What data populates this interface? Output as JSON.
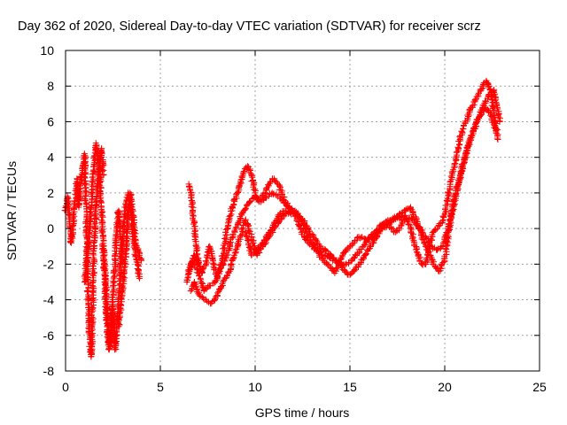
{
  "chart_data": {
    "type": "scatter",
    "title": "Day 362 of 2020, Sidereal Day-to-day VTEC variation (SDTVAR) for receiver scrz",
    "xlabel": "GPS time / hours",
    "ylabel": "SDTVAR / TECUs",
    "xlim": [
      0,
      25
    ],
    "ylim": [
      -8,
      10
    ],
    "x_ticks": [
      0,
      5,
      10,
      15,
      20,
      25
    ],
    "y_ticks": [
      -8,
      -6,
      -4,
      -2,
      0,
      2,
      4,
      6,
      8,
      10
    ],
    "grid": true,
    "marker": "+",
    "colors": {
      "series": "#ff0000",
      "grid": "#a0a0a0",
      "axis": "#000000"
    },
    "series": [
      {
        "name": "SDTVAR",
        "tracks": [
          {
            "x": [
              0.0,
              0.1,
              0.2,
              0.3,
              0.4,
              0.5,
              0.6,
              0.7,
              0.8,
              0.9,
              1.0,
              1.05,
              1.1,
              1.15,
              1.2,
              1.25,
              1.3,
              1.35,
              1.4,
              1.45,
              1.5,
              1.6,
              1.7,
              1.8,
              1.9,
              2.0
            ],
            "y": [
              1.0,
              1.8,
              0.5,
              -0.8,
              0.2,
              1.5,
              2.8,
              1.2,
              2.5,
              3.5,
              4.2,
              2.0,
              0.5,
              -2.5,
              -4.0,
              -5.5,
              -6.8,
              -7.2,
              -6.0,
              -3.0,
              -1.0,
              1.0,
              2.5,
              3.8,
              4.5,
              3.0
            ]
          },
          {
            "x": [
              1.0,
              1.1,
              1.2,
              1.3,
              1.4,
              1.5,
              1.6,
              1.7,
              1.8,
              1.9,
              2.0,
              2.1,
              2.2,
              2.3,
              2.4,
              2.5,
              2.6,
              2.7,
              2.8,
              2.9,
              3.0
            ],
            "y": [
              -3.0,
              -2.0,
              -1.0,
              0.5,
              2.0,
              3.5,
              4.8,
              4.2,
              3.0,
              1.0,
              -1.5,
              -3.5,
              -5.5,
              -6.8,
              -6.2,
              -4.0,
              -2.0,
              0.0,
              1.0,
              -0.5,
              -2.0
            ]
          },
          {
            "x": [
              2.0,
              2.1,
              2.2,
              2.3,
              2.4,
              2.5,
              2.6,
              2.7,
              2.8,
              2.9,
              3.0,
              3.1,
              3.2,
              3.3,
              3.4,
              3.5,
              3.6,
              3.7,
              3.8,
              3.9
            ],
            "y": [
              -1.0,
              -3.0,
              -5.0,
              -6.5,
              -6.0,
              -4.5,
              -6.8,
              -6.0,
              -4.0,
              -2.0,
              -1.0,
              0.5,
              1.5,
              2.0,
              1.5,
              0.5,
              -0.8,
              -1.5,
              -2.0,
              -2.8
            ]
          },
          {
            "x": [
              2.8,
              2.9,
              3.0,
              3.1,
              3.2,
              3.3,
              3.4,
              3.5,
              3.6,
              3.7,
              3.8,
              3.9,
              4.0
            ],
            "y": [
              -5.5,
              -4.5,
              -3.5,
              -2.5,
              -1.0,
              1.0,
              2.0,
              1.2,
              0.2,
              -0.8,
              -1.2,
              -1.5,
              -1.8
            ]
          },
          {
            "x": [
              6.4,
              6.5,
              6.6,
              6.8,
              7.0,
              7.2,
              7.4,
              7.6,
              7.8,
              8.0,
              8.2,
              8.4,
              8.6,
              8.8,
              9.0,
              9.2,
              9.4,
              9.6,
              9.8,
              10.0,
              10.2,
              10.4,
              10.6,
              10.8,
              11.0,
              11.2,
              11.4,
              11.6,
              11.8,
              12.0,
              12.2,
              12.4,
              12.6,
              12.8,
              13.0,
              13.2,
              13.4,
              13.6,
              13.8,
              14.0,
              14.2,
              14.4,
              14.6,
              14.8,
              15.0,
              15.2,
              15.4,
              15.6,
              15.8,
              16.0,
              16.2,
              16.4,
              16.6,
              16.8,
              17.0,
              17.2,
              17.4,
              17.6,
              17.8,
              18.0,
              18.2,
              18.4,
              18.6,
              18.8,
              19.0,
              19.2,
              19.4,
              19.6,
              19.8,
              20.0,
              20.2,
              20.4,
              20.6,
              20.8,
              21.0,
              21.2,
              21.4,
              21.6,
              21.8,
              22.0,
              22.2,
              22.4,
              22.6,
              22.8
            ],
            "y": [
              -3.0,
              -2.5,
              -2.0,
              -1.5,
              -1.8,
              -2.5,
              -2.0,
              -1.0,
              -2.0,
              -2.8,
              -2.0,
              -0.8,
              0.5,
              1.2,
              1.8,
              2.5,
              3.2,
              3.5,
              3.0,
              2.0,
              1.5,
              1.8,
              2.2,
              2.6,
              2.8,
              2.5,
              2.0,
              1.5,
              1.2,
              1.0,
              0.5,
              0.0,
              -0.5,
              -0.8,
              -1.0,
              -1.2,
              -1.5,
              -1.8,
              -2.0,
              -2.2,
              -2.5,
              -2.0,
              -1.5,
              -1.2,
              -1.0,
              -0.8,
              -0.5,
              -0.5,
              -0.6,
              -0.7,
              -0.5,
              -0.3,
              0.0,
              0.2,
              0.2,
              0.0,
              -0.2,
              0.0,
              0.5,
              0.5,
              0.0,
              -0.8,
              -1.5,
              -2.0,
              -2.0,
              -1.0,
              -0.2,
              0.0,
              0.3,
              0.8,
              2.0,
              3.0,
              4.0,
              5.0,
              5.8,
              6.2,
              6.8,
              7.2,
              7.6,
              8.0,
              8.3,
              7.8,
              6.5,
              5.0
            ]
          },
          {
            "x": [
              6.5,
              6.7,
              7.0,
              7.3,
              7.6,
              7.9,
              8.2,
              8.5,
              8.8,
              9.1,
              9.4,
              9.7,
              10.0,
              10.3,
              10.6,
              10.9,
              11.2,
              11.5,
              11.8,
              12.1,
              12.4,
              12.7,
              13.0,
              13.3,
              13.6,
              13.9,
              14.2,
              14.5,
              14.8,
              15.1,
              15.4,
              15.7,
              16.0,
              16.3,
              16.6,
              16.9,
              17.2,
              17.5,
              17.8,
              18.1,
              18.4,
              18.7,
              19.0,
              19.3,
              19.6,
              19.9,
              20.2,
              20.5,
              20.8,
              21.1,
              21.4,
              21.7,
              22.0,
              22.3,
              22.6,
              22.9
            ],
            "y": [
              -2.5,
              -1.8,
              -2.5,
              -3.5,
              -3.2,
              -3.0,
              -2.2,
              -1.5,
              -0.5,
              0.3,
              1.0,
              1.5,
              1.8,
              1.5,
              1.8,
              2.0,
              1.8,
              1.5,
              1.2,
              1.0,
              0.5,
              -0.2,
              -0.8,
              -1.2,
              -1.5,
              -1.6,
              -1.8,
              -2.0,
              -2.0,
              -1.8,
              -1.4,
              -1.0,
              -0.5,
              -0.2,
              0.2,
              0.4,
              0.5,
              0.6,
              0.7,
              0.6,
              0.4,
              0.0,
              -0.5,
              -1.0,
              -1.2,
              -1.0,
              0.0,
              1.5,
              3.0,
              4.2,
              5.2,
              6.0,
              6.8,
              7.5,
              7.8,
              6.0
            ]
          },
          {
            "x": [
              6.6,
              6.8,
              7.1,
              7.4,
              7.7,
              8.0,
              8.3,
              8.6,
              8.9,
              9.2,
              9.5,
              9.8,
              10.1,
              10.4,
              10.7,
              11.0,
              11.3,
              11.6,
              11.9,
              12.2,
              12.5,
              12.8,
              13.1,
              13.4,
              13.7,
              14.0,
              14.3,
              14.6,
              14.9,
              15.2,
              15.5,
              15.8,
              16.1,
              16.4,
              16.7,
              17.0,
              17.3,
              17.6,
              17.9,
              18.2,
              18.5,
              18.8,
              19.1,
              19.4,
              19.7,
              20.0,
              20.3,
              20.6,
              20.9,
              21.2,
              21.5,
              21.8,
              22.1,
              22.4,
              22.7
            ],
            "y": [
              -3.5,
              -3.0,
              -3.8,
              -4.0,
              -4.2,
              -3.8,
              -3.0,
              -2.5,
              -1.5,
              -0.5,
              0.5,
              -0.5,
              -1.5,
              -1.0,
              -0.5,
              0.0,
              0.5,
              0.8,
              1.0,
              0.8,
              0.5,
              0.0,
              -0.5,
              -1.0,
              -1.2,
              -1.5,
              -1.8,
              -2.2,
              -2.6,
              -2.4,
              -2.0,
              -1.5,
              -1.0,
              -0.5,
              0.0,
              0.2,
              0.5,
              0.8,
              1.0,
              1.2,
              0.5,
              -0.5,
              -1.2,
              -2.0,
              -2.4,
              -1.8,
              0.5,
              2.0,
              3.2,
              4.5,
              5.5,
              6.2,
              6.8,
              6.5,
              5.5
            ]
          },
          {
            "x": [
              6.5,
              6.6,
              6.7,
              6.8,
              6.9,
              7.0
            ],
            "y": [
              2.5,
              2.0,
              1.0,
              0.0,
              -1.0,
              -2.0
            ]
          },
          {
            "x": [
              9.5,
              9.8,
              10.1,
              10.4,
              10.7,
              11.0,
              11.3,
              11.6,
              11.9
            ],
            "y": [
              -0.2,
              -1.5,
              -1.2,
              -0.8,
              -0.3,
              0.3,
              0.8,
              1.0,
              0.8
            ]
          }
        ]
      }
    ]
  }
}
